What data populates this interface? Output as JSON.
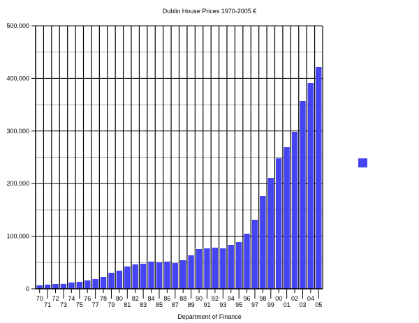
{
  "chart_data": {
    "type": "bar",
    "title": "Dublin House Prices 1970-2005 €",
    "xlabel": "Department of Finance",
    "ylabel": "",
    "ylim": [
      0,
      500000
    ],
    "yticks": [
      0,
      100000,
      200000,
      300000,
      400000,
      500000
    ],
    "ytick_labels": [
      "0",
      "100,000",
      "200,000",
      "300,000",
      "400,000",
      "500,000"
    ],
    "minor_gridlines": [
      50000,
      150000,
      250000,
      350000,
      450000
    ],
    "grid": true,
    "legend_position": "right",
    "categories": [
      "70",
      "71",
      "72",
      "73",
      "74",
      "75",
      "76",
      "77",
      "78",
      "79",
      "80",
      "81",
      "82",
      "83",
      "84",
      "85",
      "86",
      "87",
      "88",
      "89",
      "90",
      "91",
      "92",
      "93",
      "94",
      "95",
      "96",
      "97",
      "98",
      "99",
      "00",
      "01",
      "02",
      "03",
      "04",
      "05"
    ],
    "series": [
      {
        "name": "",
        "color": "#4444f2",
        "values": [
          6600,
          8000,
          9300,
          9500,
          12000,
          13300,
          16000,
          18600,
          22500,
          30500,
          34500,
          42400,
          46400,
          47700,
          51700,
          50400,
          51700,
          49000,
          54400,
          63700,
          75600,
          76900,
          78200,
          76900,
          83600,
          88900,
          104800,
          131300,
          176400,
          210900,
          248400,
          269200,
          298400,
          356800,
          391200,
          421800
        ]
      }
    ]
  },
  "colors": {
    "bar": "#4444f2",
    "gridline_major": "#000000",
    "gridline_minor": "#b0b0b0",
    "axis": "#000000"
  }
}
